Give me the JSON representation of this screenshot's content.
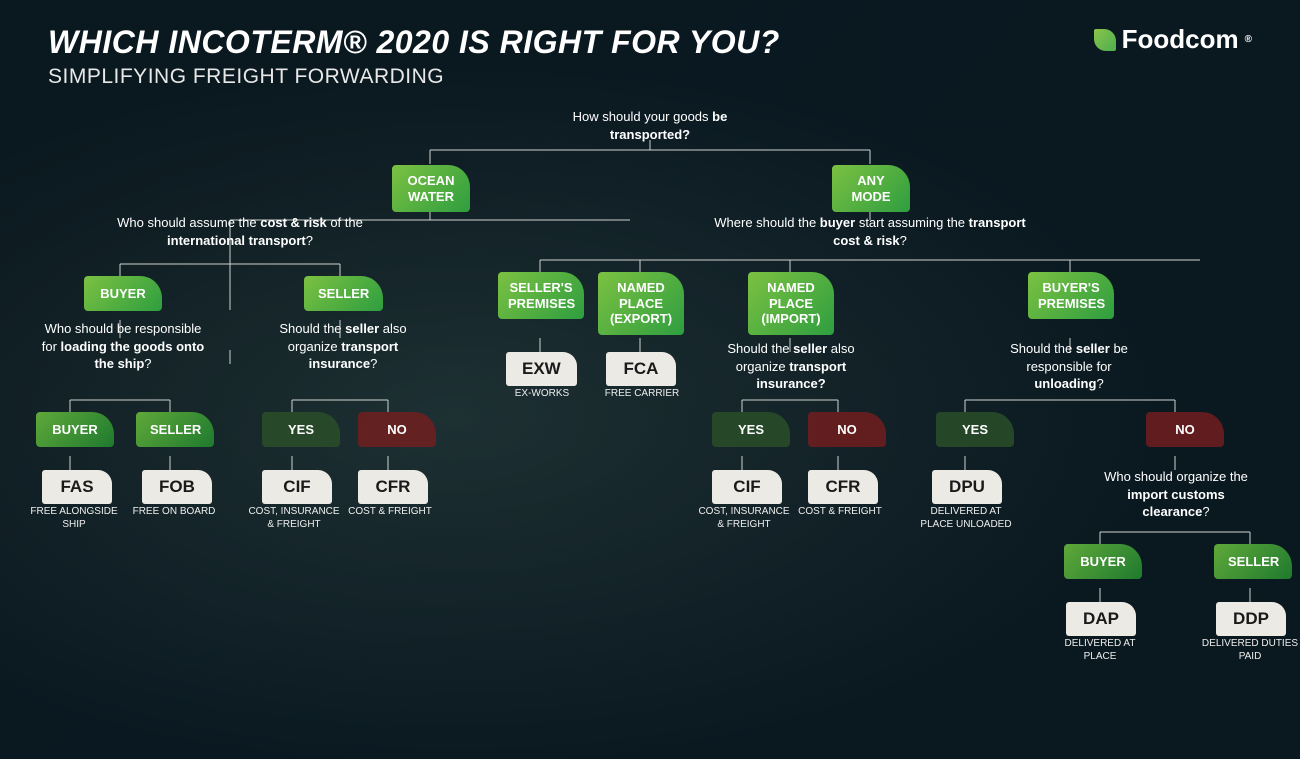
{
  "header": {
    "title": "WHICH INCOTERM® 2020 IS RIGHT FOR YOU?",
    "subtitle": "SIMPLIFYING FREIGHT FORWARDING",
    "logo_text": "Foodcom",
    "logo_mark": "®"
  },
  "colors": {
    "green_grad_a": "#7cc142",
    "green_grad_b": "#2e9e3f",
    "green2_grad_a": "#5fa83a",
    "green2_grad_b": "#1f7a2e",
    "darkgreen": "rgba(44,82,40,0.78)",
    "red": "rgba(120,30,30,0.78)",
    "result_bg": "#eceae4",
    "line": "#cfd3cf"
  },
  "q": {
    "root": "How should your goods <b>be transported?</b>",
    "ocean": "Who should assume the <b>cost & risk</b> of the <b>international transport</b>?",
    "loading": "Who should be responsible for <b>loading the goods onto the ship</b>?",
    "seller_ins": "Should the <b>seller</b> also organize <b>transport insurance</b>?",
    "any": "Where should the <b>buyer</b> start assuming the <b>transport cost & risk</b>?",
    "import_ins": "Should the <b>seller</b> also organize <b>transport insurance?</b>",
    "unloading": "Should the <b>seller</b> be responsible for <b>unloading</b>?",
    "customs": "Who should organize the <b>import customs clearance</b>?"
  },
  "labels": {
    "ocean_water": "OCEAN\nWATER",
    "any_mode": "ANY\nMODE",
    "buyer": "BUYER",
    "seller": "SELLER",
    "yes": "YES",
    "no": "NO",
    "sellers_premises": "SELLER'S\nPREMISES",
    "named_export": "NAMED\nPLACE\n(EXPORT)",
    "named_import": "NAMED\nPLACE\n(IMPORT)",
    "buyers_premises": "BUYER'S\nPREMISES"
  },
  "results": {
    "fas": {
      "code": "FAS",
      "sub": "FREE ALONGSIDE SHIP"
    },
    "fob": {
      "code": "FOB",
      "sub": "FREE ON BOARD"
    },
    "cif": {
      "code": "CIF",
      "sub": "COST, INSURANCE & FREIGHT"
    },
    "cfr": {
      "code": "CFR",
      "sub": "COST & FREIGHT"
    },
    "exw": {
      "code": "EXW",
      "sub": "EX-WORKS"
    },
    "fca": {
      "code": "FCA",
      "sub": "FREE CARRIER"
    },
    "cif2": {
      "code": "CIF",
      "sub": "COST, INSURANCE & FREIGHT"
    },
    "cfr2": {
      "code": "CFR",
      "sub": "COST & FREIGHT"
    },
    "dpu": {
      "code": "DPU",
      "sub": "DELIVERED AT PLACE UNLOADED"
    },
    "dap": {
      "code": "DAP",
      "sub": "DELIVERED AT PLACE"
    },
    "ddp": {
      "code": "DDP",
      "sub": "DELIVERED DUTIES PAID"
    }
  }
}
